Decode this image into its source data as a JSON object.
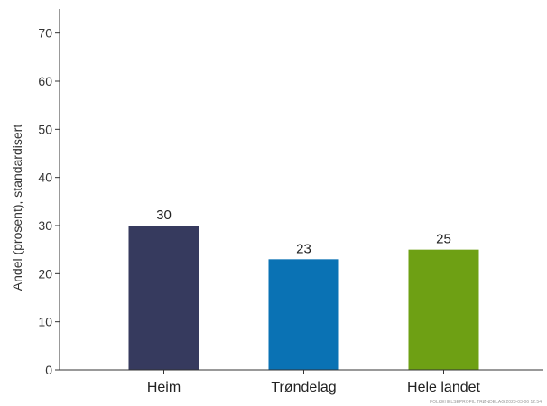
{
  "chart_data": {
    "type": "bar",
    "categories": [
      "Heim",
      "Trøndelag",
      "Hele landet"
    ],
    "values": [
      30,
      23,
      25
    ],
    "value_labels": [
      "30",
      "23",
      "25"
    ],
    "colors": [
      "#363a5e",
      "#0a72b4",
      "#6ea014"
    ],
    "ylabel": "Andel (prosent), standardisert",
    "xlabel": "",
    "ylim": [
      0,
      75
    ],
    "yticks": [
      0,
      10,
      20,
      30,
      40,
      50,
      60,
      70
    ],
    "grid": false,
    "legend": "none"
  },
  "footnote": "FOLKEHELSEPROFIL TRØNDELAG 2023-03-06 12:54"
}
